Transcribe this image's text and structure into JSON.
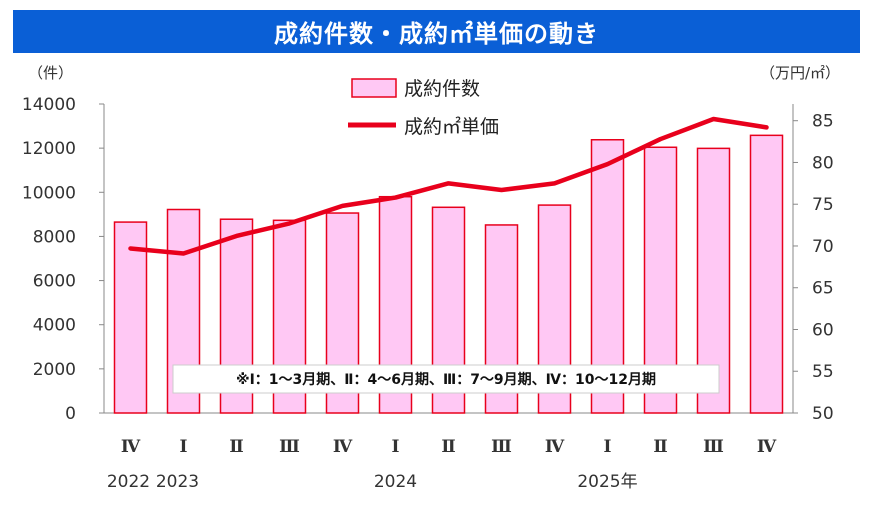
{
  "chart_data": {
    "type": "bar+line",
    "title": "成約件数・成約㎡単価の動き",
    "left_unit": "（件）",
    "right_unit": "（万円/㎡）",
    "categories": [
      "Ⅳ",
      "Ⅰ",
      "Ⅱ",
      "Ⅲ",
      "Ⅳ",
      "Ⅰ",
      "Ⅱ",
      "Ⅲ",
      "Ⅳ",
      "Ⅰ",
      "Ⅱ",
      "Ⅲ",
      "Ⅳ"
    ],
    "year_labels": [
      "2022",
      "2023",
      "2024",
      "2025年"
    ],
    "series": [
      {
        "name": "成約件数",
        "type": "bar",
        "axis": "left",
        "values": [
          8650,
          9220,
          8780,
          8730,
          9060,
          9800,
          9320,
          8520,
          9420,
          12380,
          12040,
          11990,
          12580
        ],
        "color": "#ffc8f4",
        "stroke": "#e8001c"
      },
      {
        "name": "成約㎡単価",
        "type": "line",
        "axis": "right",
        "values": [
          69.7,
          69.1,
          71.2,
          72.7,
          74.8,
          75.8,
          77.5,
          76.7,
          77.5,
          79.8,
          82.8,
          85.2,
          84.2
        ],
        "color": "#e8001c"
      }
    ],
    "y_left": {
      "min": 0,
      "max": 14000,
      "ticks": [
        "0",
        "2000",
        "4000",
        "6000",
        "8000",
        "10000",
        "12000",
        "14000"
      ]
    },
    "y_right": {
      "min": 50,
      "max": 87,
      "ticks": [
        "50",
        "55",
        "60",
        "65",
        "70",
        "75",
        "80",
        "85"
      ]
    },
    "legend": {
      "bar_label": "成約件数",
      "line_label": "成約㎡単価",
      "position": "top-center"
    },
    "note": "※Ⅰ：1～3月期、Ⅱ：4～6月期、Ⅲ：7～9月期、Ⅳ：10～12月期"
  }
}
